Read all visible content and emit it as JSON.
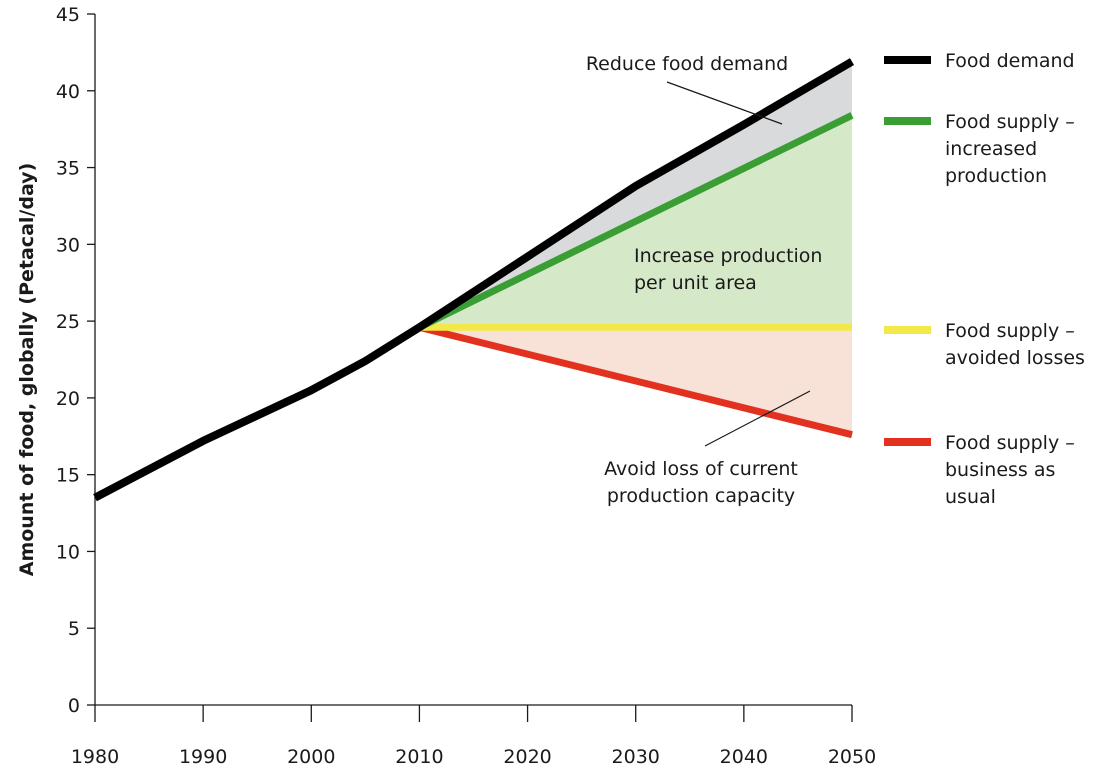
{
  "chart_data": {
    "type": "line",
    "title": "",
    "xlabel": "",
    "ylabel": "Amount of food, globally (Petacal/day)",
    "xlim": [
      1980,
      2050
    ],
    "ylim": [
      0,
      45
    ],
    "x_ticks": [
      1980,
      1990,
      2000,
      2010,
      2020,
      2030,
      2040,
      2050
    ],
    "y_ticks": [
      0,
      5,
      10,
      15,
      20,
      25,
      30,
      35,
      40,
      45
    ],
    "grid": false,
    "legend_position": "right",
    "series": [
      {
        "name": "Food demand",
        "color": "#000000",
        "x": [
          1980,
          1990,
          2000,
          2005,
          2010,
          2020,
          2030,
          2040,
          2050
        ],
        "y": [
          13.5,
          17.2,
          20.5,
          22.4,
          24.6,
          29.2,
          33.8,
          37.8,
          41.9
        ]
      },
      {
        "name": "Food supply – increased production",
        "color": "#3a9e35",
        "x": [
          2010,
          2050
        ],
        "y": [
          24.6,
          38.4
        ]
      },
      {
        "name": "Food supply – avoided losses",
        "color": "#f3e84a",
        "x": [
          2010,
          2050
        ],
        "y": [
          24.6,
          24.6
        ]
      },
      {
        "name": "Food supply – business as usual",
        "color": "#e2321f",
        "x": [
          2010,
          2050
        ],
        "y": [
          24.6,
          17.6
        ]
      }
    ],
    "filled_regions": [
      {
        "name": "Reduce food demand",
        "color": "#d9dadc",
        "between": [
          "Food demand",
          "Food supply – increased production"
        ]
      },
      {
        "name": "Increase production per unit area",
        "color": "#d5e8c7",
        "between": [
          "Food supply – increased production",
          "Food supply – avoided losses"
        ]
      },
      {
        "name": "Avoid loss of current production capacity",
        "color": "#f8e1d6",
        "between": [
          "Food supply – avoided losses",
          "Food supply – business as usual"
        ]
      }
    ],
    "annotations": [
      {
        "name": "reduce-demand",
        "lines": [
          "Reduce food demand"
        ]
      },
      {
        "name": "increase-production",
        "lines": [
          "Increase production",
          "per unit area"
        ]
      },
      {
        "name": "avoid-loss",
        "lines": [
          "Avoid loss of current",
          "production capacity"
        ]
      }
    ],
    "legend": [
      {
        "series": "Food demand",
        "lines": [
          "Food demand"
        ]
      },
      {
        "series": "Food supply – increased production",
        "lines": [
          "Food supply –",
          "increased",
          "production"
        ]
      },
      {
        "series": "Food supply – avoided losses",
        "lines": [
          "Food supply –",
          "avoided losses"
        ]
      },
      {
        "series": "Food supply – business as usual",
        "lines": [
          "Food supply –",
          "business as",
          "usual"
        ]
      }
    ]
  }
}
